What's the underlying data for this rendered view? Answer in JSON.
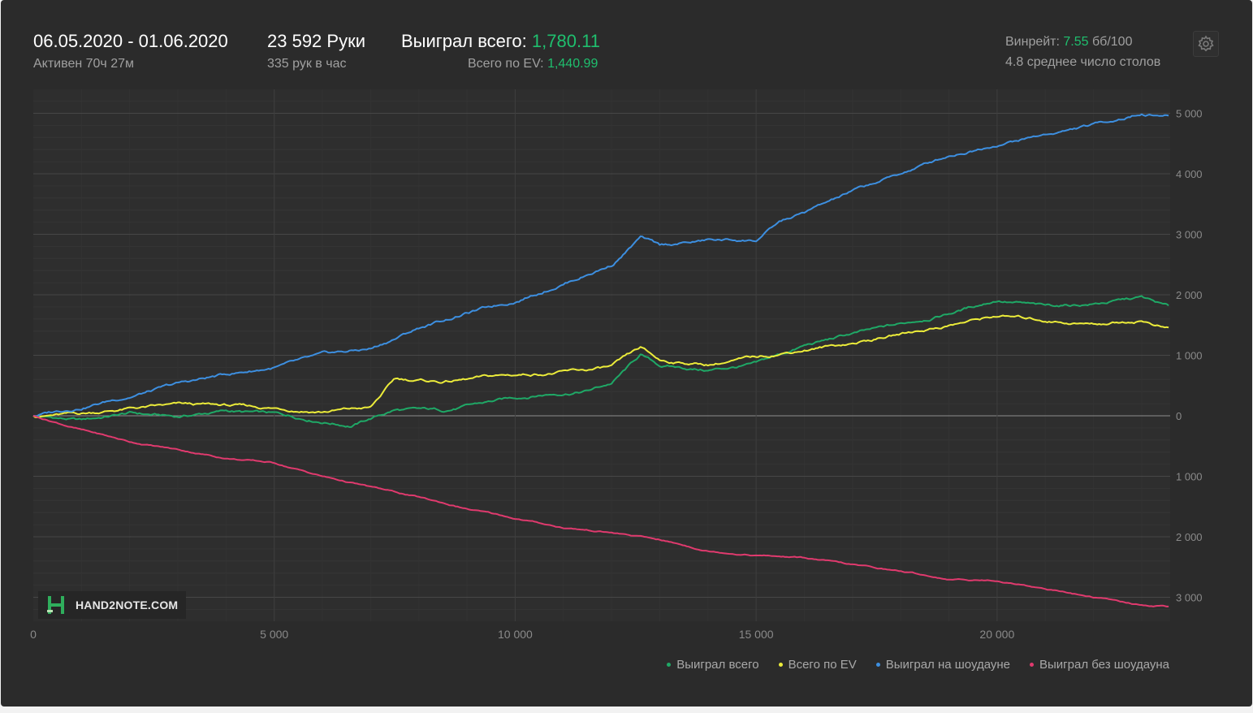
{
  "header": {
    "date_range": "06.05.2020 - 01.06.2020",
    "active": "Активен 70ч 27м",
    "hands": "23 592 Руки",
    "hands_per_hour": "335 рук в час",
    "won_total_label": "Выиграл всего:",
    "won_total_value": "1,780.11",
    "ev_total_label": "Всего по EV:",
    "ev_total_value": "1,440.99",
    "winrate_label": "Винрейт:",
    "winrate_value": "7.55",
    "winrate_unit": "бб/100",
    "avg_tables": "4.8 среднее число столов"
  },
  "watermark": {
    "text": "HAND2NOTE.COM"
  },
  "icons": {
    "settings": "gear-icon",
    "logo": "hand2note-logo-icon"
  },
  "colors": {
    "background": "#2b2b2b",
    "accent_green": "#1fbf6e",
    "series_green": "#1fa866",
    "series_yellow": "#ecec3a",
    "series_blue": "#3d8fe0",
    "series_red": "#e03a6e"
  },
  "chart_data": {
    "type": "line",
    "title": "",
    "xlabel": "",
    "ylabel": "",
    "xlim": [
      0,
      23592
    ],
    "ylim": [
      -3400,
      5400
    ],
    "x_ticks": [
      0,
      5000,
      10000,
      15000,
      20000
    ],
    "x_tick_labels": [
      "0",
      "5 000",
      "10 000",
      "15 000",
      "20 000"
    ],
    "y_ticks": [
      5000,
      4000,
      3000,
      2000,
      1000,
      0,
      -1000,
      -2000,
      -3000
    ],
    "y_tick_labels": [
      "5 000",
      "4 000",
      "3 000",
      "2 000",
      "1 000",
      "0",
      "1 000",
      "2 000",
      "3 000"
    ],
    "y_axis_position": "right",
    "grid": true,
    "legend_position": "bottom-right",
    "series": [
      {
        "name": "Выиграл всего",
        "color": "#1fa866",
        "points": [
          [
            0,
            0
          ],
          [
            1000,
            -80
          ],
          [
            2000,
            40
          ],
          [
            3000,
            -20
          ],
          [
            4000,
            80
          ],
          [
            5000,
            20
          ],
          [
            6000,
            -80
          ],
          [
            6600,
            -150
          ],
          [
            7500,
            100
          ],
          [
            8500,
            80
          ],
          [
            9500,
            230
          ],
          [
            10500,
            350
          ],
          [
            11500,
            420
          ],
          [
            12000,
            540
          ],
          [
            12600,
            1000
          ],
          [
            13000,
            820
          ],
          [
            14000,
            750
          ],
          [
            15000,
            850
          ],
          [
            16000,
            1150
          ],
          [
            17000,
            1350
          ],
          [
            18000,
            1500
          ],
          [
            19000,
            1700
          ],
          [
            20000,
            1920
          ],
          [
            21000,
            1800
          ],
          [
            22000,
            1850
          ],
          [
            23000,
            1950
          ],
          [
            23592,
            1780
          ]
        ]
      },
      {
        "name": "Всего по EV",
        "color": "#ecec3a",
        "points": [
          [
            0,
            0
          ],
          [
            1000,
            30
          ],
          [
            2000,
            120
          ],
          [
            3000,
            170
          ],
          [
            4000,
            160
          ],
          [
            5000,
            120
          ],
          [
            6000,
            80
          ],
          [
            7000,
            130
          ],
          [
            7500,
            600
          ],
          [
            8500,
            560
          ],
          [
            9500,
            640
          ],
          [
            10500,
            700
          ],
          [
            11500,
            750
          ],
          [
            12000,
            800
          ],
          [
            12600,
            1100
          ],
          [
            13000,
            900
          ],
          [
            14000,
            850
          ],
          [
            15000,
            960
          ],
          [
            16000,
            1100
          ],
          [
            17000,
            1200
          ],
          [
            18000,
            1350
          ],
          [
            19000,
            1500
          ],
          [
            20000,
            1650
          ],
          [
            21000,
            1580
          ],
          [
            22000,
            1520
          ],
          [
            23000,
            1580
          ],
          [
            23592,
            1440
          ]
        ]
      },
      {
        "name": "Выиграл на шоудауне",
        "color": "#3d8fe0",
        "points": [
          [
            0,
            0
          ],
          [
            1000,
            150
          ],
          [
            2000,
            330
          ],
          [
            3000,
            520
          ],
          [
            4000,
            680
          ],
          [
            5000,
            800
          ],
          [
            6000,
            980
          ],
          [
            7000,
            1100
          ],
          [
            8000,
            1450
          ],
          [
            9000,
            1700
          ],
          [
            10000,
            1900
          ],
          [
            11000,
            2200
          ],
          [
            12000,
            2500
          ],
          [
            12600,
            2950
          ],
          [
            13000,
            2800
          ],
          [
            14000,
            2900
          ],
          [
            15000,
            2900
          ],
          [
            15500,
            3200
          ],
          [
            16000,
            3350
          ],
          [
            17000,
            3700
          ],
          [
            18000,
            4000
          ],
          [
            19000,
            4300
          ],
          [
            20000,
            4500
          ],
          [
            21000,
            4650
          ],
          [
            22000,
            4800
          ],
          [
            23000,
            5000
          ],
          [
            23592,
            4960
          ]
        ]
      },
      {
        "name": "Выиграл без шоудауна",
        "color": "#e03a6e",
        "points": [
          [
            0,
            0
          ],
          [
            1000,
            -230
          ],
          [
            2000,
            -430
          ],
          [
            3000,
            -560
          ],
          [
            4000,
            -700
          ],
          [
            5000,
            -780
          ],
          [
            6000,
            -1000
          ],
          [
            7000,
            -1180
          ],
          [
            8000,
            -1350
          ],
          [
            9000,
            -1540
          ],
          [
            10000,
            -1700
          ],
          [
            11000,
            -1850
          ],
          [
            12000,
            -1930
          ],
          [
            13000,
            -2050
          ],
          [
            14000,
            -2230
          ],
          [
            15000,
            -2300
          ],
          [
            16000,
            -2350
          ],
          [
            17000,
            -2470
          ],
          [
            18000,
            -2570
          ],
          [
            19000,
            -2700
          ],
          [
            20000,
            -2720
          ],
          [
            21000,
            -2850
          ],
          [
            22000,
            -3000
          ],
          [
            23000,
            -3130
          ],
          [
            23592,
            -3150
          ]
        ]
      }
    ]
  }
}
